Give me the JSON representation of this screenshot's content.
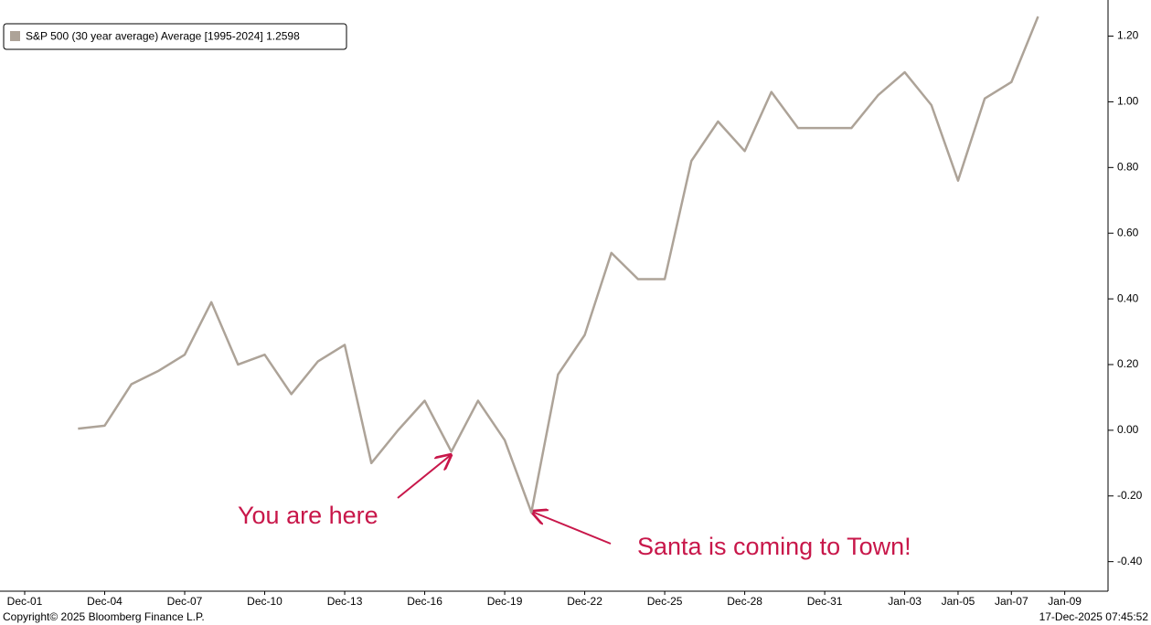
{
  "chart_data": {
    "type": "line",
    "categories": [
      "Dec-01",
      null,
      null,
      "Dec-04",
      null,
      null,
      "Dec-07",
      null,
      null,
      "Dec-10",
      null,
      null,
      "Dec-13",
      null,
      null,
      "Dec-16",
      null,
      null,
      "Dec-19",
      null,
      null,
      "Dec-22",
      null,
      null,
      "Dec-25",
      null,
      null,
      "Dec-28",
      null,
      null,
      "Dec-31",
      null,
      null,
      "Jan-03",
      null,
      "Jan-05",
      null,
      "Jan-07",
      null,
      "Jan-09"
    ],
    "series": [
      {
        "name": "S&P 500 (30 year average) Average [1995-2024] 1.2598",
        "color": "#ada398",
        "values": [
          null,
          null,
          0.005,
          0.014,
          0.14,
          0.18,
          0.23,
          0.39,
          0.2,
          0.23,
          0.11,
          0.21,
          0.26,
          -0.1,
          0.0,
          0.09,
          -0.065,
          0.09,
          -0.03,
          -0.25,
          0.17,
          0.29,
          0.54,
          0.46,
          0.46,
          0.82,
          0.94,
          0.85,
          1.03,
          0.92,
          0.92,
          0.92,
          1.02,
          1.09,
          0.99,
          0.76,
          1.01,
          1.06,
          1.2598,
          null
        ]
      }
    ],
    "ylim": [
      -0.49,
      1.31
    ],
    "yticks": [
      {
        "value": -0.4,
        "label": "-0.40"
      },
      {
        "value": -0.2,
        "label": "-0.20"
      },
      {
        "value": 0,
        "label": "0.00"
      },
      {
        "value": 0.2,
        "label": "0.20"
      },
      {
        "value": 0.4,
        "label": "0.40"
      },
      {
        "value": 0.6,
        "label": "0.60"
      },
      {
        "value": 0.8,
        "label": "0.80"
      },
      {
        "value": 1.0,
        "label": "1.00"
      },
      {
        "value": 1.2,
        "label": "1.20"
      }
    ],
    "y_axis_side": "right",
    "grid": false,
    "legend": "top-left",
    "annotations": [
      {
        "text": "You are here"
      },
      {
        "text": "Santa is coming to Town!"
      }
    ],
    "footer_left": "Copyright© 2025 Bloomberg Finance L.P.",
    "footer_right": "17-Dec-2025 07:45:52"
  }
}
